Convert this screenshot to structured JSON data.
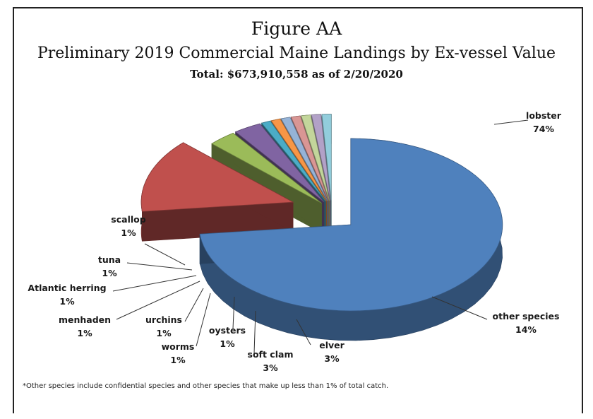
{
  "figure_label": "Figure AA",
  "chart_data": {
    "type": "pie",
    "style": "3d-exploded",
    "title": "Preliminary 2019 Commercial Maine Landings by Ex-vessel Value",
    "subtitle": "Total: $673,910,558 as of 2/20/2020",
    "slices": [
      {
        "label": "lobster",
        "value": 74,
        "display": "74%",
        "color": "#4f81bd"
      },
      {
        "label": "other species",
        "value": 14,
        "display": "14%",
        "color": "#c0504d"
      },
      {
        "label": "elver",
        "value": 3,
        "display": "3%",
        "color": "#9bbb59"
      },
      {
        "label": "soft clam",
        "value": 3,
        "display": "3%",
        "color": "#8064a2"
      },
      {
        "label": "oysters",
        "value": 1,
        "display": "1%",
        "color": "#4bacc6"
      },
      {
        "label": "worms",
        "value": 1,
        "display": "1%",
        "color": "#f79646"
      },
      {
        "label": "urchins",
        "value": 1,
        "display": "1%",
        "color": "#95b3d7"
      },
      {
        "label": "menhaden",
        "value": 1,
        "display": "1%",
        "color": "#d99694"
      },
      {
        "label": "Atlantic herring",
        "value": 1,
        "display": "1%",
        "color": "#c3d69b"
      },
      {
        "label": "tuna",
        "value": 1,
        "display": "1%",
        "color": "#b2a1c7"
      },
      {
        "label": "scallop",
        "value": 1,
        "display": "1%",
        "color": "#92cddc"
      }
    ]
  },
  "footnote": "*Other species include confidential species and other species that make up less than 1% of total catch."
}
